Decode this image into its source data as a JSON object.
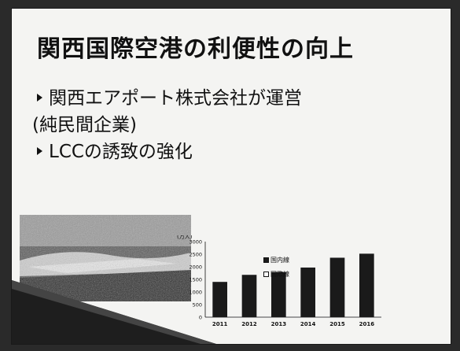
{
  "slide": {
    "title": "関西国際空港の利便性の向上",
    "bullets": [
      "関西エアポート株式会社が運営",
      "(純民間企業)",
      "LCCの誘致の強化"
    ]
  },
  "icons": [
    "bullet-triangle-icon",
    "airport-photo"
  ],
  "colors": {
    "bar": "#1a1a1a",
    "background": "#f4f4f2"
  },
  "chart_data": {
    "type": "bar",
    "ylabel": "(万人)",
    "categories": [
      "2011",
      "2012",
      "2013",
      "2014",
      "2015",
      "2016"
    ],
    "series": [
      {
        "name": "国内線",
        "values": [
          1400,
          1680,
          1790,
          1970,
          2360,
          2520
        ]
      }
    ],
    "legend": [
      "国内線",
      "国際線"
    ],
    "legend_position": "right",
    "yticks": [
      "3000",
      "2500",
      "2000",
      "1500",
      "1000",
      "500",
      "0"
    ],
    "ylim": [
      0,
      3000
    ],
    "grid": false
  }
}
